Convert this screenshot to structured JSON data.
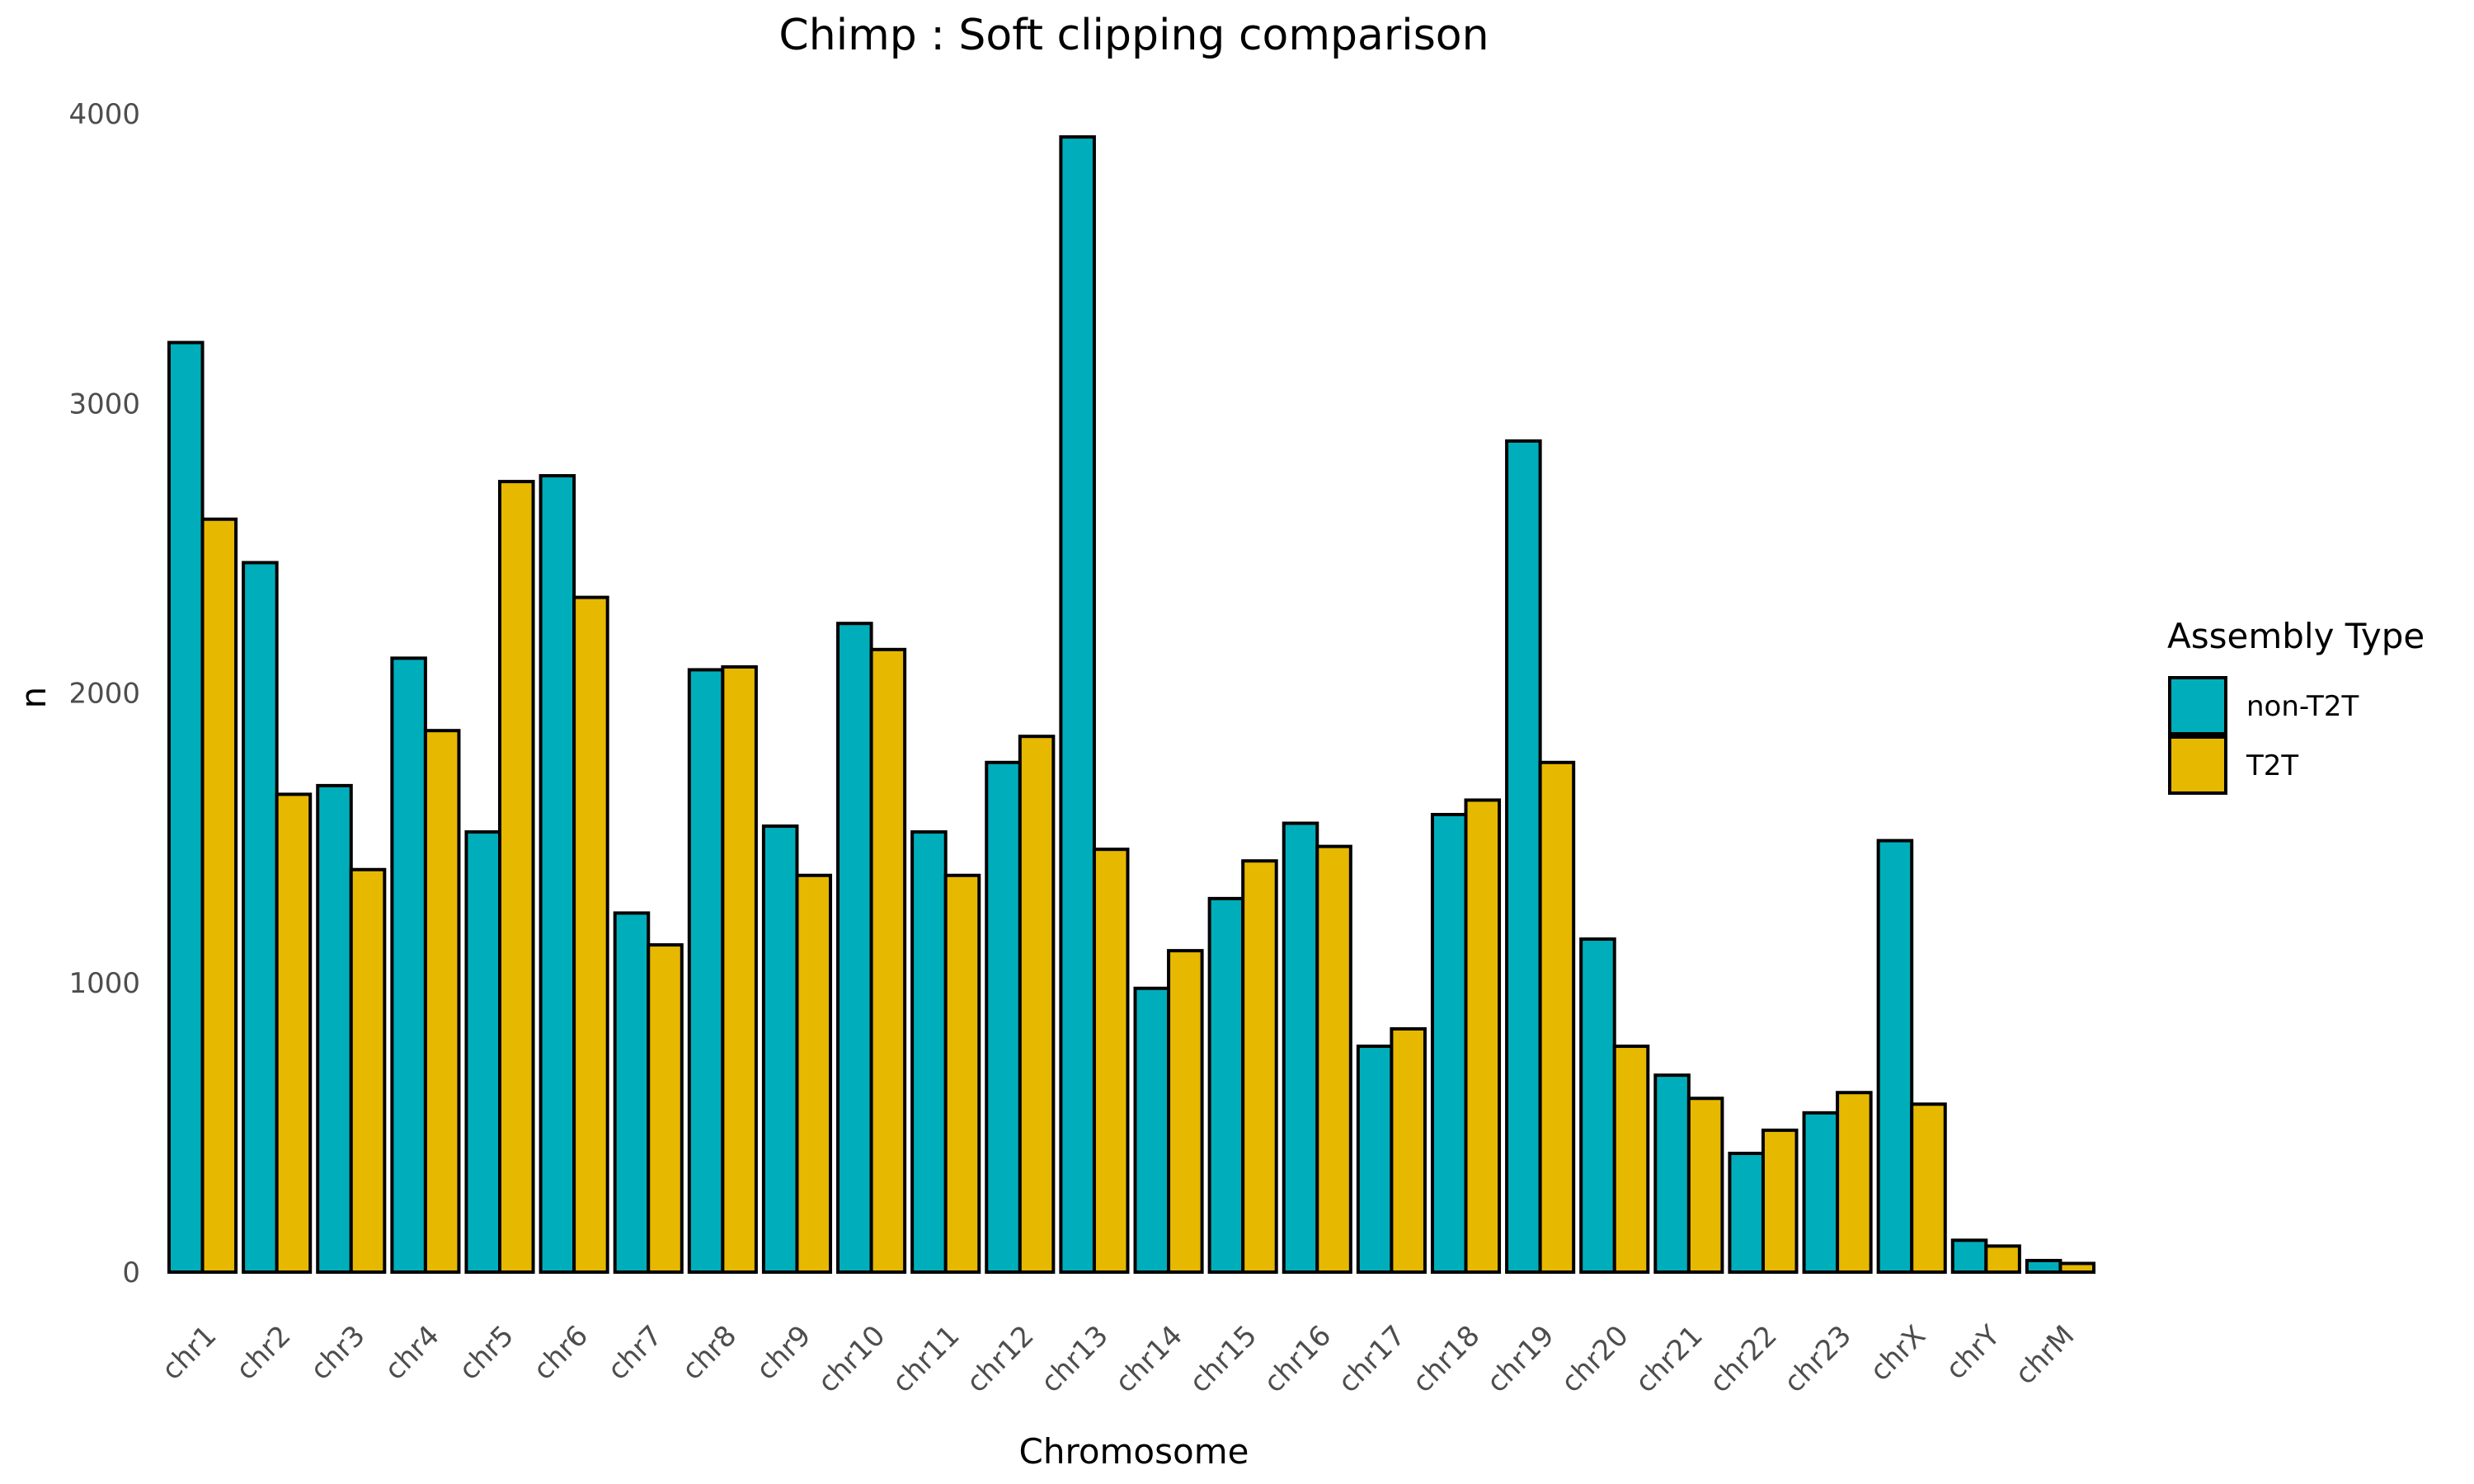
{
  "chart_data": {
    "type": "bar",
    "title": "Chimp : Soft clipping comparison",
    "xlabel": "Chromosome",
    "ylabel": "n",
    "ylim": [
      0,
      4000
    ],
    "yticks": [
      0,
      1000,
      2000,
      3000,
      4000
    ],
    "grid": false,
    "categories": [
      "chr1",
      "chr2",
      "chr3",
      "chr4",
      "chr5",
      "chr6",
      "chr7",
      "chr8",
      "chr9",
      "chr10",
      "chr11",
      "chr12",
      "chr13",
      "chr14",
      "chr15",
      "chr16",
      "chr17",
      "chr18",
      "chr19",
      "chr20",
      "chr21",
      "chr22",
      "chr23",
      "chrX",
      "chrY",
      "chrM"
    ],
    "series": [
      {
        "name": "non-T2T",
        "color": "#00AEBB",
        "values": [
          3210,
          2450,
          1680,
          2120,
          1520,
          2750,
          1240,
          2080,
          1540,
          2240,
          1520,
          1760,
          3920,
          980,
          1290,
          1550,
          780,
          1580,
          2870,
          1150,
          680,
          410,
          550,
          1490,
          110,
          40
        ]
      },
      {
        "name": "T2T",
        "color": "#E7B800",
        "values": [
          2600,
          1650,
          1390,
          1870,
          2730,
          2330,
          1130,
          2090,
          1370,
          2150,
          1370,
          1850,
          1460,
          1110,
          1420,
          1470,
          840,
          1630,
          1760,
          780,
          600,
          490,
          620,
          580,
          90,
          30
        ]
      }
    ],
    "legend": {
      "title": "Assembly Type",
      "position": "right"
    }
  }
}
